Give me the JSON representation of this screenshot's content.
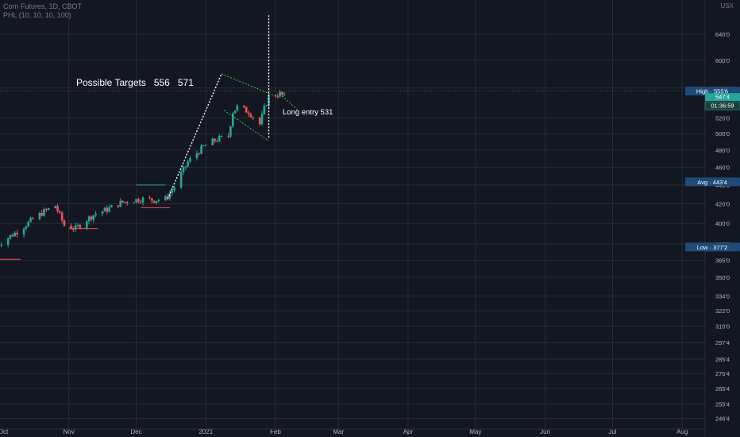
{
  "header": {
    "symbol_line": "Corn Futures, 1D, CBOT",
    "indicator_line": "PHL (10, 10, 10, 100)",
    "corner_label": "USX"
  },
  "annotations": {
    "targets_label": "Possible Targets",
    "target_1": "556",
    "target_2": "571",
    "entry_label": "Long entry 531"
  },
  "price_scale": {
    "badges": {
      "high": "High · 555'6",
      "current_price": "547'4",
      "countdown": "01:36:59",
      "avg": "Avg · 443'4",
      "low": "Low · 377'2"
    }
  },
  "colors": {
    "background": "#131722",
    "grid": "#262a36",
    "up": "#26a69a",
    "down": "#ef5350",
    "annotation_text": "#ffffff",
    "badge_blue": "#1e4a7a",
    "badge_teal": "#26a69a",
    "pattern_line": "#2ecc40"
  },
  "chart_data": {
    "type": "candlestick",
    "title": "Corn Futures, 1D, CBOT",
    "indicator": "PHL (10, 10, 10, 100)",
    "x_tick_labels": [
      "Oct",
      "Nov",
      "Dec",
      "2021",
      "Feb",
      "Mar",
      "Apr",
      "May",
      "Jun",
      "Jul",
      "Aug"
    ],
    "y_tick_labels": [
      "640'0",
      "600'0",
      "560'0",
      "520'0",
      "500'0",
      "480'0",
      "460'0",
      "440'0",
      "420'0",
      "400'0",
      "380'0",
      "365'0",
      "350'0",
      "334'0",
      "322'0",
      "310'0",
      "297'4",
      "285'4",
      "275'4",
      "265'4",
      "255'4",
      "246'4"
    ],
    "y_scale": "log",
    "ylim": [
      240,
      690
    ],
    "price_range": {
      "high": 555.75,
      "avg": 443.5,
      "low": 377.25,
      "last": 547.5
    },
    "close_series": [
      {
        "date": "2020-09-30",
        "close": 379
      },
      {
        "date": "2020-10-09",
        "close": 392
      },
      {
        "date": "2020-10-16",
        "close": 404
      },
      {
        "date": "2020-10-21",
        "close": 412
      },
      {
        "date": "2020-10-26",
        "close": 418
      },
      {
        "date": "2020-10-30",
        "close": 398
      },
      {
        "date": "2020-11-04",
        "close": 395
      },
      {
        "date": "2020-11-09",
        "close": 404
      },
      {
        "date": "2020-11-13",
        "close": 410
      },
      {
        "date": "2020-11-18",
        "close": 414
      },
      {
        "date": "2020-11-24",
        "close": 421
      },
      {
        "date": "2020-11-30",
        "close": 424
      },
      {
        "date": "2020-12-04",
        "close": 425
      },
      {
        "date": "2020-12-09",
        "close": 424
      },
      {
        "date": "2020-12-14",
        "close": 425
      },
      {
        "date": "2020-12-18",
        "close": 438
      },
      {
        "date": "2020-12-24",
        "close": 466
      },
      {
        "date": "2020-12-31",
        "close": 484
      },
      {
        "date": "2021-01-06",
        "close": 493
      },
      {
        "date": "2021-01-11",
        "close": 497
      },
      {
        "date": "2021-01-13",
        "close": 528
      },
      {
        "date": "2021-01-15",
        "close": 534
      },
      {
        "date": "2021-01-20",
        "close": 528
      },
      {
        "date": "2021-01-25",
        "close": 512
      },
      {
        "date": "2021-01-27",
        "close": 532
      },
      {
        "date": "2021-01-29",
        "close": 548
      },
      {
        "date": "2021-02-03",
        "close": 552
      },
      {
        "date": "2021-02-05",
        "close": 547.5
      }
    ],
    "levels": [
      {
        "type": "resistance",
        "value": 440
      },
      {
        "type": "support",
        "value": 416
      },
      {
        "type": "support",
        "value": 395
      },
      {
        "type": "support",
        "value": 366
      }
    ],
    "projected_targets": [
      556,
      571
    ],
    "entry_level": 531
  }
}
